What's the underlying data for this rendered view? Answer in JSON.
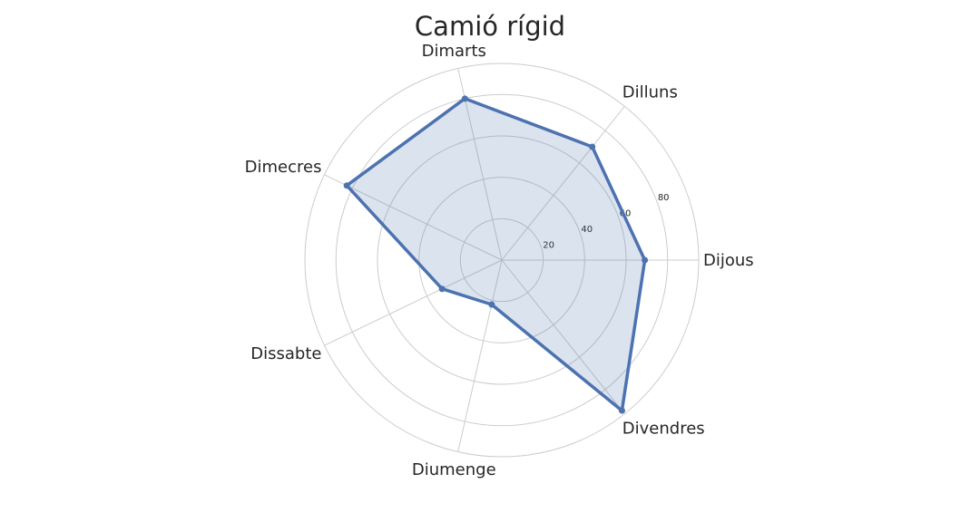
{
  "chart_data": {
    "type": "radar",
    "title": "Camió rígid",
    "categories": [
      "Dijous",
      "Dilluns",
      "Dimarts",
      "Dimecres",
      "Dissabte",
      "Diumenge",
      "Divendres"
    ],
    "series": [
      {
        "values": [
          69,
          70,
          80,
          83,
          32,
          22,
          93
        ]
      }
    ],
    "rlim": [
      0,
      95
    ],
    "r_ticks": [
      20,
      40,
      60,
      80
    ],
    "grid": true,
    "colors": {
      "line": "#4c72b0",
      "fill": "#4c72b0",
      "fill_opacity": 0.2,
      "grid": "#cccccc"
    }
  }
}
